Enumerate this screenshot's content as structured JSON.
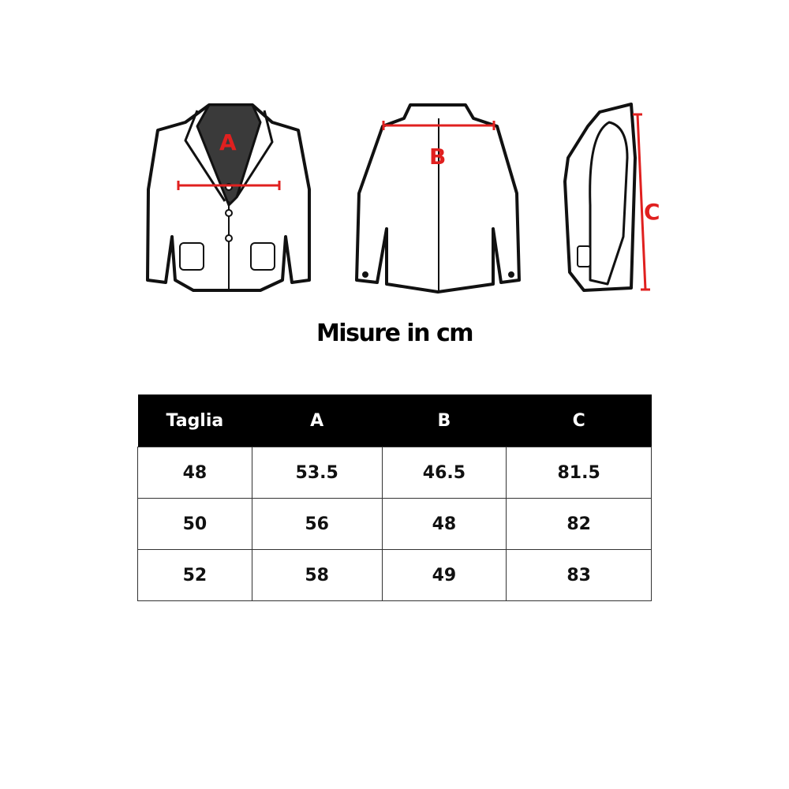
{
  "illustration": {
    "labels": {
      "front": "A",
      "back": "B",
      "side": "C"
    },
    "measure_color": "#e0201f"
  },
  "title": "Misure in cm",
  "table": {
    "headers": [
      "Taglia",
      "A",
      "B",
      "C"
    ],
    "rows": [
      [
        "48",
        "53.5",
        "46.5",
        "81.5"
      ],
      [
        "50",
        "56",
        "48",
        "82"
      ],
      [
        "52",
        "58",
        "49",
        "83"
      ]
    ]
  }
}
